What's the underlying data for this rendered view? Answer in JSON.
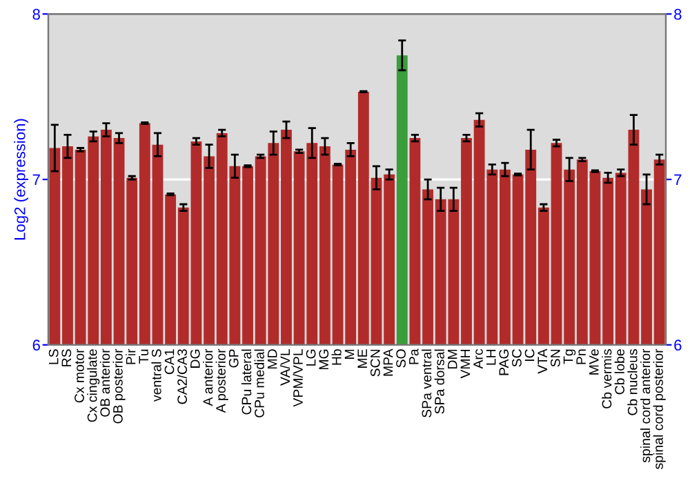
{
  "chart_data": {
    "type": "bar",
    "ylabel": "Log2 (expression)",
    "categories": [
      "LS",
      "RS",
      "Cx motor",
      "Cx cingulate",
      "OB anterior",
      "OB posterior",
      "Pir",
      "Tu",
      "ventral S",
      "CA1",
      "CA2/CA3",
      "DG",
      "A anterior",
      "A posterior",
      "GP",
      "CPu lateral",
      "CPu medial",
      "MD",
      "VA/VL",
      "VPM/VPL",
      "LG",
      "MG",
      "Hb",
      "M",
      "ME",
      "SCN",
      "MPA",
      "SO",
      "Pa",
      "SPa ventral",
      "SPa dorsal",
      "DM",
      "VMH",
      "Arc",
      "LH",
      "PAG",
      "SC",
      "IC",
      "VTA",
      "SN",
      "Tg",
      "Pn",
      "MVe",
      "Cb vermis",
      "Cb lobe",
      "Cb nucleus",
      "spinal cord anterior",
      "spinal cord posterior"
    ],
    "values": [
      7.19,
      7.2,
      7.18,
      7.26,
      7.3,
      7.25,
      7.01,
      7.34,
      7.21,
      6.91,
      6.83,
      7.23,
      7.14,
      7.28,
      7.08,
      7.08,
      7.14,
      7.22,
      7.3,
      7.17,
      7.22,
      7.2,
      7.09,
      7.18,
      7.53,
      7.01,
      7.03,
      7.75,
      7.25,
      6.94,
      6.88,
      6.88,
      7.25,
      7.36,
      7.06,
      7.06,
      7.03,
      7.18,
      6.83,
      7.22,
      7.06,
      7.12,
      7.05,
      7.01,
      7.04,
      7.3,
      6.94,
      7.12
    ],
    "errors": [
      0.14,
      0.07,
      0.01,
      0.03,
      0.04,
      0.03,
      0.01,
      0.005,
      0.07,
      0.005,
      0.02,
      0.02,
      0.07,
      0.02,
      0.07,
      0.005,
      0.01,
      0.07,
      0.05,
      0.01,
      0.09,
      0.05,
      0.005,
      0.04,
      0.003,
      0.07,
      0.03,
      0.09,
      0.02,
      0.06,
      0.07,
      0.07,
      0.02,
      0.04,
      0.03,
      0.04,
      0.005,
      0.12,
      0.02,
      0.02,
      0.07,
      0.01,
      0.005,
      0.03,
      0.02,
      0.09,
      0.09,
      0.03
    ],
    "colors": [
      "#b22b2b",
      "#b22b2b",
      "#b22b2b",
      "#b22b2b",
      "#b22b2b",
      "#b22b2b",
      "#b22b2b",
      "#b22b2b",
      "#b22b2b",
      "#b22b2b",
      "#b22b2b",
      "#b22b2b",
      "#b22b2b",
      "#b22b2b",
      "#b22b2b",
      "#b22b2b",
      "#b22b2b",
      "#b22b2b",
      "#b22b2b",
      "#b22b2b",
      "#b22b2b",
      "#b22b2b",
      "#b22b2b",
      "#b22b2b",
      "#b22b2b",
      "#b22b2b",
      "#b22b2b",
      "#3a9e3a",
      "#b22b2b",
      "#b22b2b",
      "#b22b2b",
      "#b22b2b",
      "#b22b2b",
      "#b22b2b",
      "#b22b2b",
      "#b22b2b",
      "#b22b2b",
      "#b22b2b",
      "#b22b2b",
      "#b22b2b",
      "#b22b2b",
      "#b22b2b",
      "#b22b2b",
      "#b22b2b",
      "#b22b2b",
      "#b22b2b",
      "#b22b2b",
      "#b22b2b"
    ],
    "ylim": [
      6,
      8
    ],
    "yticks": [
      6,
      7,
      8
    ],
    "y2lim": [
      6,
      8
    ],
    "y2ticks": [
      6,
      7,
      8
    ],
    "grid": "y"
  }
}
